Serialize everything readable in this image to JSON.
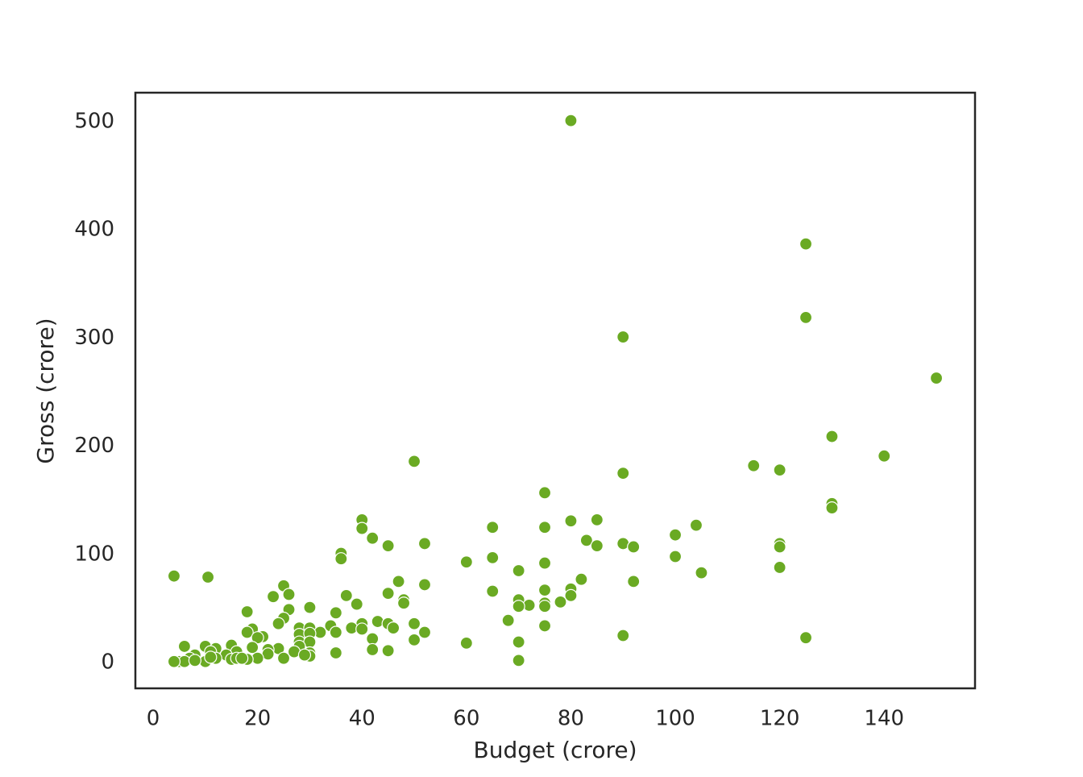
{
  "chart_data": {
    "type": "scatter",
    "xlabel": "Budget (crore)",
    "ylabel": "Gross (crore)",
    "color": "#6aaa23",
    "xlim": [
      -3.4,
      157.4
    ],
    "ylim": [
      -23.8,
      526.8
    ],
    "xticks": [
      0,
      20,
      40,
      60,
      80,
      100,
      120,
      140
    ],
    "yticks": [
      0,
      100,
      200,
      300,
      400,
      500
    ],
    "x": [
      80,
      125,
      125,
      90,
      150,
      130,
      140,
      50,
      115,
      120,
      90,
      75,
      130,
      130,
      104,
      40,
      40,
      85,
      80,
      65,
      75,
      42,
      100,
      83,
      120,
      120,
      90,
      52,
      45,
      85,
      92,
      36,
      36,
      65,
      100,
      75,
      60,
      120,
      105,
      70,
      4,
      10.5,
      82,
      92,
      47,
      52,
      25,
      80,
      75,
      65,
      45,
      26,
      80,
      23,
      37,
      48,
      70,
      48,
      75,
      78,
      39,
      72,
      70,
      75,
      30,
      18,
      26,
      35,
      25,
      68,
      24,
      43,
      40,
      50,
      45,
      46,
      38,
      40,
      28,
      30,
      75,
      34,
      19,
      32,
      52,
      35,
      18,
      28,
      30,
      21,
      90,
      125,
      20,
      42,
      50,
      70,
      28,
      30,
      60,
      15,
      28,
      6,
      10,
      19,
      12,
      24,
      22,
      42,
      45,
      11,
      35,
      16,
      27,
      30,
      22,
      8,
      14,
      25,
      20,
      18,
      30,
      29,
      7,
      12,
      15,
      5,
      6,
      10,
      4,
      70,
      8,
      16,
      11,
      17
    ],
    "y": [
      501,
      387,
      319,
      301,
      263,
      209,
      191,
      186,
      182,
      178,
      175,
      157,
      147,
      143,
      127,
      132,
      124,
      132,
      131,
      125,
      125,
      115,
      118,
      113,
      110,
      107,
      110,
      110,
      108,
      108,
      107,
      101,
      96,
      97,
      98,
      92,
      93,
      88,
      83,
      85,
      80,
      79,
      77,
      75,
      75,
      72,
      71,
      68,
      67,
      66,
      64,
      63,
      62,
      61,
      62,
      58,
      58,
      55,
      55,
      56,
      54,
      53,
      52,
      52,
      51,
      47,
      49,
      46,
      41,
      39,
      36,
      38,
      36,
      36,
      36,
      32,
      32,
      31,
      32,
      32,
      34,
      34,
      31,
      28,
      28,
      28,
      28,
      26,
      27,
      24,
      25,
      23,
      23,
      22,
      21,
      19,
      19,
      19,
      18,
      16,
      15,
      15,
      15,
      14,
      13,
      13,
      12,
      12,
      11,
      10,
      9,
      10,
      10,
      9,
      8,
      7,
      7,
      4,
      4,
      3,
      6,
      7,
      4,
      4,
      3,
      1,
      1,
      1,
      1,
      2,
      2,
      4,
      5,
      4
    ]
  }
}
